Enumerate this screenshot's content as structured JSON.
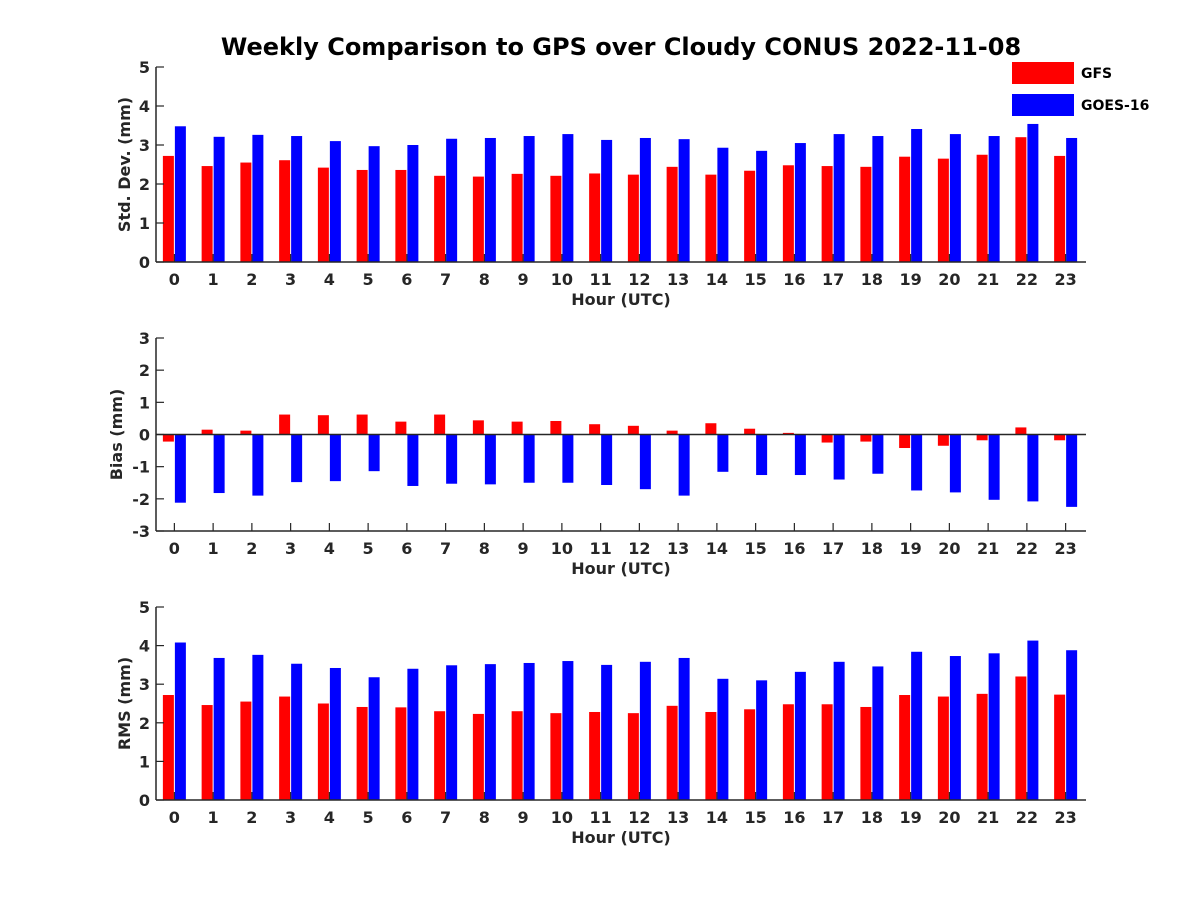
{
  "title": "Weekly Comparison to GPS over Cloudy CONUS 2022-11-08",
  "legend": {
    "placement": "top-right",
    "entries": [
      {
        "name": "GFS",
        "color": "#ff0000"
      },
      {
        "name": "GOES-16",
        "color": "#0000ff"
      }
    ]
  },
  "chart_data": [
    {
      "type": "bar",
      "title": "",
      "xlabel": "Hour (UTC)",
      "ylabel": "Std. Dev. (mm)",
      "ylim": [
        0,
        5
      ],
      "yticks": [
        0,
        1,
        2,
        3,
        4,
        5
      ],
      "categories": [
        "0",
        "1",
        "2",
        "3",
        "4",
        "5",
        "6",
        "7",
        "8",
        "9",
        "10",
        "11",
        "12",
        "13",
        "14",
        "15",
        "16",
        "17",
        "18",
        "19",
        "20",
        "21",
        "22",
        "23"
      ],
      "series": [
        {
          "name": "GFS",
          "color": "#ff0000",
          "values": [
            2.72,
            2.46,
            2.55,
            2.61,
            2.42,
            2.36,
            2.36,
            2.21,
            2.19,
            2.26,
            2.21,
            2.27,
            2.24,
            2.44,
            2.24,
            2.34,
            2.48,
            2.46,
            2.44,
            2.7,
            2.65,
            2.75,
            3.2,
            2.72
          ]
        },
        {
          "name": "GOES-16",
          "color": "#0000ff",
          "values": [
            3.48,
            3.21,
            3.26,
            3.23,
            3.1,
            2.97,
            3.0,
            3.16,
            3.18,
            3.23,
            3.28,
            3.13,
            3.18,
            3.15,
            2.93,
            2.85,
            3.05,
            3.28,
            3.23,
            3.41,
            3.28,
            3.23,
            3.54,
            3.18
          ]
        }
      ]
    },
    {
      "type": "bar",
      "title": "",
      "xlabel": "Hour (UTC)",
      "ylabel": "Bias (mm)",
      "ylim": [
        -3,
        3
      ],
      "yticks": [
        -3,
        -2,
        -1,
        0,
        1,
        2,
        3
      ],
      "categories": [
        "0",
        "1",
        "2",
        "3",
        "4",
        "5",
        "6",
        "7",
        "8",
        "9",
        "10",
        "11",
        "12",
        "13",
        "14",
        "15",
        "16",
        "17",
        "18",
        "19",
        "20",
        "21",
        "22",
        "23"
      ],
      "series": [
        {
          "name": "GFS",
          "color": "#ff0000",
          "values": [
            -0.22,
            0.15,
            0.12,
            0.62,
            0.6,
            0.62,
            0.4,
            0.62,
            0.44,
            0.4,
            0.42,
            0.32,
            0.27,
            0.12,
            0.35,
            0.18,
            0.05,
            -0.25,
            -0.22,
            -0.42,
            -0.35,
            -0.18,
            0.22,
            -0.18
          ]
        },
        {
          "name": "GOES-16",
          "color": "#0000ff",
          "values": [
            -2.12,
            -1.82,
            -1.9,
            -1.48,
            -1.45,
            -1.14,
            -1.6,
            -1.53,
            -1.55,
            -1.5,
            -1.5,
            -1.57,
            -1.7,
            -1.9,
            -1.16,
            -1.26,
            -1.26,
            -1.4,
            -1.22,
            -1.74,
            -1.8,
            -2.03,
            -2.08,
            -2.25
          ]
        }
      ]
    },
    {
      "type": "bar",
      "title": "",
      "xlabel": "Hour (UTC)",
      "ylabel": "RMS (mm)",
      "ylim": [
        0,
        5
      ],
      "yticks": [
        0,
        1,
        2,
        3,
        4,
        5
      ],
      "categories": [
        "0",
        "1",
        "2",
        "3",
        "4",
        "5",
        "6",
        "7",
        "8",
        "9",
        "10",
        "11",
        "12",
        "13",
        "14",
        "15",
        "16",
        "17",
        "18",
        "19",
        "20",
        "21",
        "22",
        "23"
      ],
      "series": [
        {
          "name": "GFS",
          "color": "#ff0000",
          "values": [
            2.72,
            2.46,
            2.55,
            2.68,
            2.5,
            2.41,
            2.4,
            2.3,
            2.23,
            2.3,
            2.25,
            2.28,
            2.25,
            2.44,
            2.28,
            2.35,
            2.48,
            2.48,
            2.41,
            2.72,
            2.68,
            2.75,
            3.2,
            2.73
          ]
        },
        {
          "name": "GOES-16",
          "color": "#0000ff",
          "values": [
            4.08,
            3.68,
            3.76,
            3.53,
            3.42,
            3.18,
            3.4,
            3.49,
            3.52,
            3.55,
            3.6,
            3.5,
            3.58,
            3.68,
            3.14,
            3.1,
            3.32,
            3.58,
            3.46,
            3.84,
            3.73,
            3.8,
            4.13,
            3.88
          ]
        }
      ]
    }
  ]
}
